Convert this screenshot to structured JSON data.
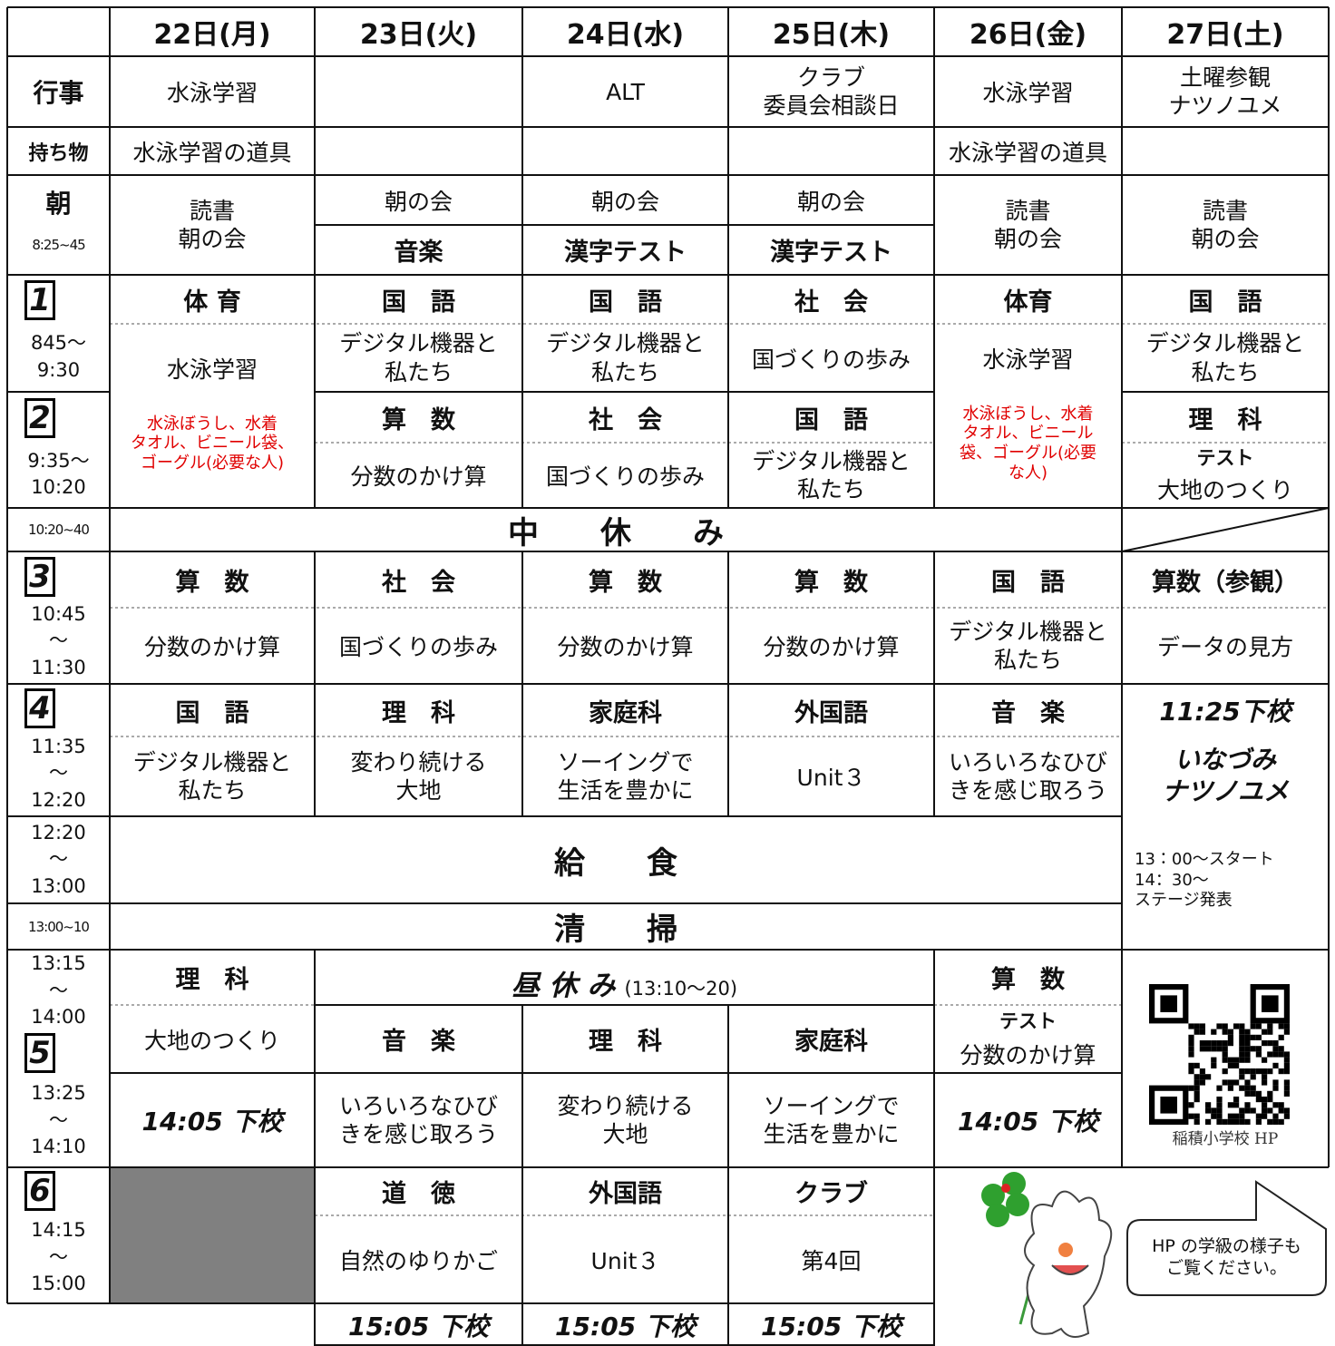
{
  "days": [
    "22日(月)",
    "23日(火)",
    "24日(水)",
    "25日(木)",
    "26日(金)",
    "27日(土)"
  ],
  "events": {
    "label": "行事",
    "mon": "水泳学習",
    "wed": "ALT",
    "thu": [
      "クラブ",
      "委員会相談日"
    ],
    "fri": "水泳学習",
    "sat": [
      "土曜参観",
      "ナツノユメ"
    ]
  },
  "belongings": {
    "label": "持ち物",
    "mon": "水泳学習の道具",
    "fri": "水泳学習の道具"
  },
  "morning": {
    "label": "朝",
    "time": "8:25~45",
    "mon": [
      "読書",
      "朝の会"
    ],
    "tue": [
      "朝の会",
      "音楽"
    ],
    "wed": [
      "朝の会",
      "漢字テスト"
    ],
    "thu": [
      "朝の会",
      "漢字テスト"
    ],
    "fri": [
      "読書",
      "朝の会"
    ],
    "sat": [
      "読書",
      "朝の会"
    ]
  },
  "period1": {
    "number": "1",
    "time": [
      "845～",
      "9:30"
    ],
    "mon": {
      "subject": "体 育",
      "content": "水泳学習",
      "note": [
        "水泳ぼうし、水着",
        "タオル、ビニール袋、",
        "ゴーグル(必要な人)"
      ]
    },
    "tue": {
      "subject": "国　語",
      "content": [
        "デジタル機器と",
        "私たち"
      ]
    },
    "wed": {
      "subject": "国　語",
      "content": [
        "デジタル機器と",
        "私たち"
      ]
    },
    "thu": {
      "subject": "社　会",
      "content": "国づくりの歩み"
    },
    "fri": {
      "subject": "体育",
      "content": "水泳学習",
      "note": [
        "水泳ぼうし、水着",
        "タオル、ビニール",
        "袋、ゴーグル(必要",
        "な人)"
      ]
    },
    "sat": {
      "subject": "国　語",
      "content": [
        "デジタル機器と",
        "私たち"
      ]
    }
  },
  "period2": {
    "number": "2",
    "time": [
      "9:35～",
      "10:20"
    ],
    "tue": {
      "subject": "算　数",
      "content": "分数のかけ算"
    },
    "wed": {
      "subject": "社　会",
      "content": "国づくりの歩み"
    },
    "thu": {
      "subject": "国　語",
      "content": [
        "デジタル機器と",
        "私たち"
      ]
    },
    "sat": {
      "subject": "理　科",
      "tag": "テスト",
      "content": "大地のつくり"
    }
  },
  "break": {
    "time": "10:20~40",
    "label": "中　　休　　み"
  },
  "period3": {
    "number": "3",
    "time": [
      "10:45",
      "～",
      "11:30"
    ],
    "mon": {
      "subject": "算　数",
      "content": "分数のかけ算"
    },
    "tue": {
      "subject": "社　会",
      "content": "国づくりの歩み"
    },
    "wed": {
      "subject": "算　数",
      "content": "分数のかけ算"
    },
    "thu": {
      "subject": "算　数",
      "content": "分数のかけ算"
    },
    "fri": {
      "subject": "国　語",
      "content": [
        "デジタル機器と",
        "私たち"
      ]
    },
    "sat": {
      "subject": "算数（参観）",
      "content": "データの見方"
    }
  },
  "period4": {
    "number": "4",
    "time": [
      "11:35",
      "～",
      "12:20"
    ],
    "mon": {
      "subject": "国　語",
      "content": [
        "デジタル機器と",
        "私たち"
      ]
    },
    "tue": {
      "subject": "理　科",
      "content": [
        "変わり続ける",
        "大地"
      ]
    },
    "wed": {
      "subject": "家庭科",
      "content": [
        "ソーイングで",
        "生活を豊かに"
      ]
    },
    "thu": {
      "subject": "外国語",
      "content": "Unit３"
    },
    "fri": {
      "subject": "音　楽",
      "content": [
        "いろいろなひび",
        "きを感じ取ろう"
      ]
    },
    "sat": {
      "subject": "11:25下校",
      "event": [
        "いなづみ",
        "ナツノユメ"
      ],
      "note": [
        "13：00～スタート",
        "14：30～",
        "ステージ発表"
      ]
    }
  },
  "lunch": {
    "time": [
      "12:20",
      "～",
      "13:00"
    ],
    "label": "給　　食"
  },
  "cleaning": {
    "time": "13:00~10",
    "label": "清　　掃"
  },
  "period5": {
    "number": "5",
    "time_before": [
      "13:15",
      "～",
      "14:00"
    ],
    "time": [
      "13:25",
      "～",
      "14:10"
    ],
    "mon": {
      "subject": "理　科",
      "content": "大地のつくり",
      "dismissal": "14:05 下校"
    },
    "recess": {
      "label": "昼 休 み",
      "time": "(13:10～20)"
    },
    "tue": {
      "subject": "音　楽",
      "content": [
        "いろいろなひび",
        "きを感じ取ろう"
      ]
    },
    "wed": {
      "subject": "理　科",
      "content": [
        "変わり続ける",
        "大地"
      ]
    },
    "thu": {
      "subject": "家庭科",
      "content": [
        "ソーイングで",
        "生活を豊かに"
      ]
    },
    "fri": {
      "subject": "算　数",
      "tag": "テスト",
      "content": "分数のかけ算",
      "dismissal": "14:05 下校"
    },
    "sat": {
      "caption": "稲積小学校 HP"
    }
  },
  "period6": {
    "number": "6",
    "time": [
      "14:15",
      "～",
      "15:00"
    ],
    "tue": {
      "subject": "道　徳",
      "content": "自然のゆりかご"
    },
    "wed": {
      "subject": "外国語",
      "content": "Unit３"
    },
    "thu": {
      "subject": "クラブ",
      "content": "第4回"
    }
  },
  "final_dismissal": {
    "tue": "15:05 下校",
    "wed": "15:05 下校",
    "thu": "15:05 下校"
  },
  "bubble": [
    "HP の学級の様子も",
    "ご覧ください。"
  ]
}
